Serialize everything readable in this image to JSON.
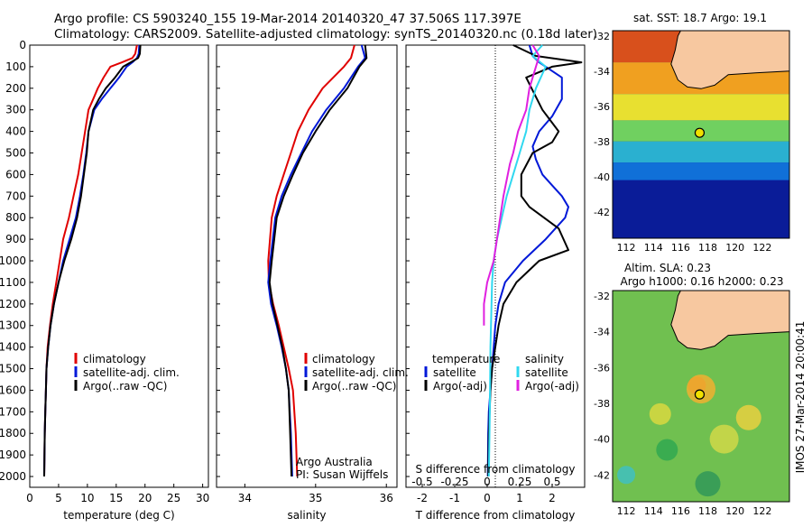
{
  "title": {
    "line1": "Argo profile: CS 5903240_155 19-Mar-2014 20140320_47 37.506S 117.397E",
    "line2": "Climatology: CARS2009. Satellite-adjusted climatology: synTS_20140320.nc (0.18d later)"
  },
  "colors": {
    "climatology": "#e00000",
    "satellite": "#0018d8",
    "argo": "#000000",
    "satellite_s": "#30d8f0",
    "argo_s": "#e020e0",
    "land": "#f7c8a0",
    "marker_fill": "#f0e000"
  },
  "maps": {
    "sst_title": "sat. SST: 18.7 Argo: 19.1",
    "sla_title1": "Altim. SLA: 0.23",
    "sla_title2": "Argo h1000: 0.16 h2000: 0.23",
    "timestamp": "IMOS 27-Mar-2014 20:00:41",
    "lat_ticks": [
      "-32",
      "-34",
      "-36",
      "-38",
      "-40",
      "-42"
    ],
    "lon_ticks": [
      "112",
      "114",
      "116",
      "118",
      "120",
      "122"
    ]
  },
  "chart_data": [
    {
      "type": "line",
      "id": "temperature",
      "xlabel": "temperature (deg C)",
      "ylabel": "",
      "xlim": [
        0,
        31
      ],
      "ylim": [
        0,
        2050
      ],
      "y_reversed": true,
      "x_ticks": [
        "0",
        "5",
        "10",
        "15",
        "20",
        "25",
        "30"
      ],
      "y_ticks": [
        "0",
        "100",
        "200",
        "300",
        "400",
        "500",
        "600",
        "700",
        "800",
        "900",
        "1000",
        "1100",
        "1200",
        "1300",
        "1400",
        "1500",
        "1600",
        "1700",
        "1800",
        "1900",
        "2000"
      ],
      "legend": [
        "climatology",
        "satellite-adj. clim.",
        "Argo(..raw -QC)"
      ],
      "series": [
        {
          "name": "climatology",
          "color_key": "climatology",
          "x": [
            18.6,
            18.3,
            17.8,
            16.0,
            14.0,
            12.8,
            11.8,
            11.0,
            10.2,
            9.6,
            9.0,
            8.4,
            7.6,
            6.8,
            5.8,
            5.2,
            4.6,
            4.0,
            3.5,
            3.1,
            2.9,
            2.8,
            2.7,
            2.6,
            2.5
          ],
          "y": [
            0,
            40,
            60,
            80,
            100,
            150,
            200,
            250,
            300,
            400,
            500,
            600,
            700,
            800,
            900,
            1000,
            1100,
            1200,
            1300,
            1400,
            1500,
            1600,
            1700,
            1800,
            2000
          ]
        },
        {
          "name": "satellite-adj. clim.",
          "color_key": "satellite",
          "x": [
            19.0,
            18.9,
            18.6,
            17.8,
            16.8,
            15.5,
            14.0,
            12.5,
            11.2,
            10.2,
            9.8,
            9.3,
            8.7,
            8.0,
            6.9,
            5.8,
            5.0,
            4.2,
            3.6,
            3.2,
            2.9,
            2.8,
            2.7,
            2.6,
            2.5
          ],
          "y": [
            0,
            40,
            60,
            80,
            100,
            150,
            200,
            250,
            300,
            400,
            500,
            600,
            700,
            800,
            900,
            1000,
            1100,
            1200,
            1300,
            1400,
            1500,
            1600,
            1700,
            1800,
            2000
          ]
        },
        {
          "name": "Argo(..raw -QC)",
          "color_key": "argo",
          "x": [
            19.2,
            19.1,
            18.8,
            17.5,
            16.2,
            14.8,
            13.2,
            12.0,
            11.0,
            10.2,
            9.9,
            9.4,
            8.9,
            8.2,
            7.2,
            6.0,
            5.0,
            4.2,
            3.6,
            3.2,
            2.9,
            2.8,
            2.7,
            2.6,
            2.5
          ],
          "y": [
            0,
            40,
            60,
            80,
            100,
            150,
            200,
            250,
            300,
            400,
            500,
            600,
            700,
            800,
            900,
            1000,
            1100,
            1200,
            1300,
            1400,
            1500,
            1600,
            1700,
            1800,
            2000
          ]
        }
      ]
    },
    {
      "type": "line",
      "id": "salinity",
      "xlabel": "salinity",
      "ylabel": "",
      "xlim": [
        33.6,
        36.15
      ],
      "ylim": [
        0,
        2050
      ],
      "y_reversed": true,
      "x_ticks": [
        "34",
        "35",
        "36"
      ],
      "legend": [
        "climatology",
        "satellite-adj. clim.",
        "Argo(..raw -QC)"
      ],
      "annotation": [
        "Argo Australia",
        "PI: Susan Wijffels"
      ],
      "series": [
        {
          "name": "climatology",
          "color_key": "climatology",
          "x": [
            35.55,
            35.5,
            35.4,
            35.1,
            34.9,
            34.75,
            34.65,
            34.55,
            34.45,
            34.38,
            34.33,
            34.34,
            34.4,
            34.48,
            34.55,
            34.62,
            34.68,
            34.72,
            34.74
          ],
          "y": [
            0,
            60,
            100,
            200,
            300,
            400,
            500,
            600,
            700,
            800,
            1000,
            1100,
            1200,
            1300,
            1400,
            1500,
            1600,
            1800,
            2000
          ]
        },
        {
          "name": "satellite-adj. clim.",
          "color_key": "satellite",
          "x": [
            35.65,
            35.7,
            35.6,
            35.4,
            35.15,
            34.95,
            34.8,
            34.65,
            34.52,
            34.43,
            34.36,
            34.33,
            34.37,
            34.45,
            34.52,
            34.58,
            34.62,
            34.65,
            34.67
          ],
          "y": [
            0,
            60,
            100,
            200,
            300,
            400,
            500,
            600,
            700,
            800,
            1000,
            1100,
            1200,
            1300,
            1400,
            1500,
            1600,
            1800,
            2000
          ]
        },
        {
          "name": "Argo(..raw -QC)",
          "color_key": "argo",
          "x": [
            35.7,
            35.72,
            35.62,
            35.45,
            35.2,
            35.0,
            34.82,
            34.68,
            34.55,
            34.45,
            34.38,
            34.35,
            34.39,
            34.46,
            34.53,
            34.58,
            34.62,
            34.64,
            34.66
          ],
          "y": [
            0,
            60,
            100,
            200,
            300,
            400,
            500,
            600,
            700,
            800,
            1000,
            1100,
            1200,
            1300,
            1400,
            1500,
            1600,
            1800,
            2000
          ]
        }
      ]
    },
    {
      "type": "line",
      "id": "difference",
      "xlabel": "T difference from climatology",
      "xlabel_top": "S difference from climatology",
      "xlim": [
        -2.5,
        3.0
      ],
      "ylim": [
        0,
        2050
      ],
      "y_reversed": true,
      "x_ticks": [
        "-2",
        "-1",
        "0",
        "1",
        "2"
      ],
      "x_ticks_s": [
        "-0.5",
        "-0.25",
        "0",
        "0.25",
        "0.5"
      ],
      "legend_title_t": "temperature",
      "legend_title_s": "salinity",
      "legend_t": [
        "satellite",
        "Argo(-adj)"
      ],
      "legend_s": [
        "satellite",
        "Argo(-adj)"
      ],
      "series": [
        {
          "name": "satellite",
          "color_key": "satellite",
          "x": [
            1.3,
            1.4,
            1.6,
            2.3,
            2.3,
            2.0,
            1.6,
            1.4,
            1.5,
            1.7,
            2.0,
            2.3,
            2.5,
            2.4,
            1.8,
            1.1,
            0.55,
            0.35,
            0.25,
            0.15,
            0.1,
            0.05,
            0.03,
            0.02
          ],
          "y": [
            0,
            50,
            80,
            150,
            250,
            330,
            400,
            470,
            530,
            600,
            650,
            700,
            750,
            800,
            900,
            1000,
            1100,
            1200,
            1300,
            1500,
            1600,
            1700,
            1800,
            2000
          ]
        },
        {
          "name": "Argo(-adj)",
          "color_key": "argo",
          "x": [
            0.8,
            1.5,
            2.9,
            2.0,
            1.2,
            1.7,
            2.2,
            2.0,
            1.4,
            1.05,
            1.05,
            1.3,
            2.2,
            2.5,
            1.6,
            0.9,
            0.5,
            0.35,
            0.25,
            0.15,
            0.1,
            0.05,
            0.03
          ],
          "y": [
            0,
            50,
            80,
            100,
            150,
            300,
            400,
            450,
            500,
            600,
            700,
            750,
            850,
            950,
            1000,
            1100,
            1200,
            1300,
            1400,
            1500,
            1600,
            1800,
            2000
          ]
        },
        {
          "name": "satellite S",
          "color_key": "satellite_s",
          "x": [
            1.7,
            1.4,
            1.8,
            1.5,
            1.3,
            1.2,
            1.0,
            0.8,
            0.6,
            0.45,
            0.3,
            0.2,
            0.15,
            0.1,
            0.08,
            0.05
          ],
          "y": [
            0,
            50,
            100,
            200,
            300,
            400,
            500,
            600,
            700,
            800,
            900,
            1000,
            1100,
            1400,
            1700,
            2000
          ]
        },
        {
          "name": "Argo S",
          "color_key": "argo_s",
          "x": [
            1.4,
            1.6,
            1.5,
            1.3,
            1.2,
            0.95,
            0.8,
            0.7,
            0.5,
            0.3,
            0.2,
            0.0,
            -0.1,
            -0.1
          ],
          "y": [
            0,
            50,
            100,
            200,
            300,
            400,
            500,
            550,
            700,
            900,
            1000,
            1100,
            1200,
            1300
          ]
        }
      ]
    }
  ]
}
